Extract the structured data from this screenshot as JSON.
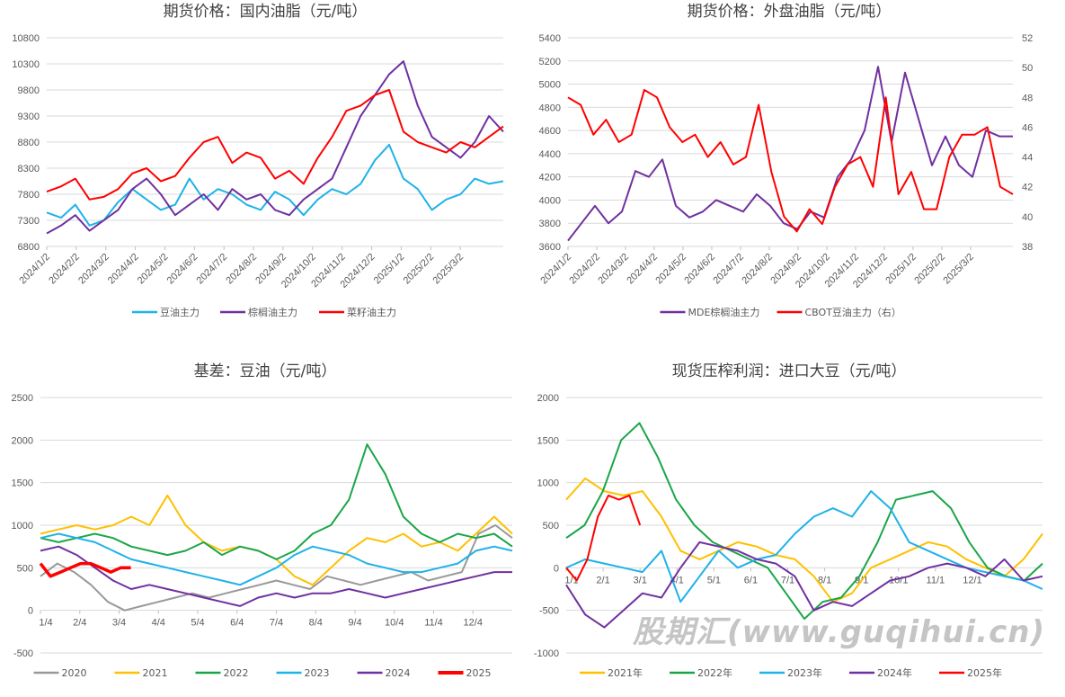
{
  "watermark": "股期汇(www.guqihui.cn)",
  "chart_data": [
    {
      "type": "line",
      "title": "期货价格：国内油脂（元/吨）",
      "ylim": [
        6800,
        10800
      ],
      "yticks": [
        6800,
        7300,
        7800,
        8300,
        8800,
        9300,
        9800,
        10300,
        10800
      ],
      "xlim": [
        0,
        14.6
      ],
      "xticks": [
        "2024/1/2",
        "2024/2/2",
        "2024/3/2",
        "2024/4/2",
        "2024/5/2",
        "2024/6/2",
        "2024/7/2",
        "2024/8/2",
        "2024/9/2",
        "2024/10/2",
        "2024/11/2",
        "2024/12/2",
        "2025/1/2",
        "2025/2/2",
        "2025/3/2"
      ],
      "legend_position": "bottom",
      "series": [
        {
          "name": "豆油主力",
          "color": "#1fb2e8",
          "values": [
            7450,
            7350,
            7600,
            7200,
            7300,
            7650,
            7900,
            7700,
            7500,
            7600,
            8100,
            7700,
            7900,
            7800,
            7600,
            7500,
            7850,
            7700,
            7400,
            7700,
            7900,
            7800,
            8000,
            8450,
            8750,
            8100,
            7900,
            7500,
            7700,
            7800,
            8100,
            8000,
            8050
          ]
        },
        {
          "name": "棕榈油主力",
          "color": "#7030a0",
          "values": [
            7050,
            7200,
            7400,
            7100,
            7300,
            7500,
            7900,
            8100,
            7800,
            7400,
            7600,
            7800,
            7500,
            7900,
            7700,
            7800,
            7500,
            7400,
            7700,
            7900,
            8100,
            8700,
            9300,
            9700,
            10100,
            10350,
            9500,
            8900,
            8700,
            8500,
            8800,
            9300,
            9000
          ]
        },
        {
          "name": "菜籽油主力",
          "color": "#ff0000",
          "values": [
            7850,
            7950,
            8100,
            7700,
            7750,
            7900,
            8200,
            8300,
            8050,
            8150,
            8500,
            8800,
            8900,
            8400,
            8600,
            8500,
            8100,
            8250,
            8000,
            8500,
            8900,
            9400,
            9500,
            9700,
            9800,
            9000,
            8800,
            8700,
            8600,
            8800,
            8700,
            8900,
            9100
          ]
        }
      ]
    },
    {
      "type": "line",
      "title": "期货价格：外盘油脂（元/吨）",
      "ylim": [
        3600,
        5400
      ],
      "yticks": [
        3600,
        3800,
        4000,
        4200,
        4400,
        4600,
        4800,
        5000,
        5200,
        5400
      ],
      "y2lim": [
        38,
        52
      ],
      "y2ticks": [
        38,
        40,
        42,
        44,
        46,
        48,
        50,
        52
      ],
      "xlim": [
        0,
        14.6
      ],
      "xticks": [
        "2024/1/2",
        "2024/2/2",
        "2024/3/2",
        "2024/4/2",
        "2024/5/2",
        "2024/6/2",
        "2024/7/2",
        "2024/8/2",
        "2024/9/2",
        "2024/10/2",
        "2024/11/2",
        "2024/12/2",
        "2025/1/2",
        "2025/2/2",
        "2025/3/2"
      ],
      "legend_position": "bottom",
      "series": [
        {
          "name": "MDE棕榈油主力",
          "color": "#7030a0",
          "axis": "left",
          "values": [
            3650,
            3800,
            3950,
            3800,
            3900,
            4250,
            4200,
            4350,
            3950,
            3850,
            3900,
            4000,
            3950,
            3900,
            4050,
            3950,
            3800,
            3750,
            3900,
            3850,
            4200,
            4350,
            4600,
            5150,
            4500,
            5100,
            4700,
            4300,
            4550,
            4300,
            4200,
            4600,
            4550,
            4550
          ]
        },
        {
          "name": "CBOT豆油主力（右）",
          "color": "#ff0000",
          "axis": "right",
          "values": [
            48,
            47.5,
            45.5,
            46.5,
            45,
            45.5,
            48.5,
            48,
            46,
            45,
            45.5,
            44,
            45,
            43.5,
            44,
            47.5,
            43,
            40,
            39,
            40.5,
            39.5,
            42,
            43.5,
            44,
            42,
            48,
            41.5,
            43,
            40.5,
            40.5,
            44,
            45.5,
            45.5,
            46,
            42,
            41.5
          ]
        }
      ]
    },
    {
      "type": "line",
      "title": "基差：豆油（元/吨）",
      "ylim": [
        -500,
        2500
      ],
      "yticks": [
        -500,
        0,
        500,
        1000,
        1500,
        2000,
        2500
      ],
      "xlim": [
        0,
        12
      ],
      "xticks": [
        "1/4",
        "2/4",
        "3/4",
        "4/4",
        "5/4",
        "6/4",
        "7/4",
        "8/4",
        "9/4",
        "10/4",
        "11/4",
        "12/4"
      ],
      "legend_position": "bottom",
      "series": [
        {
          "name": "2020",
          "color": "#999999",
          "values": [
            400,
            550,
            450,
            300,
            100,
            0,
            50,
            100,
            150,
            200,
            150,
            200,
            250,
            300,
            350,
            300,
            250,
            400,
            350,
            300,
            350,
            400,
            450,
            350,
            400,
            450,
            900,
            1000,
            850
          ]
        },
        {
          "name": "2021",
          "color": "#ffc000",
          "values": [
            900,
            950,
            1000,
            950,
            1000,
            1100,
            1000,
            1350,
            1000,
            800,
            700,
            750,
            700,
            600,
            400,
            300,
            500,
            700,
            850,
            800,
            900,
            750,
            800,
            700,
            900,
            1100,
            900
          ]
        },
        {
          "name": "2022",
          "color": "#1aa648",
          "values": [
            850,
            800,
            850,
            900,
            850,
            750,
            700,
            650,
            700,
            800,
            650,
            750,
            700,
            600,
            700,
            900,
            1000,
            1300,
            1950,
            1600,
            1100,
            900,
            800,
            900,
            850,
            900,
            750
          ]
        },
        {
          "name": "2023",
          "color": "#1fb2e8",
          "values": [
            850,
            900,
            850,
            800,
            700,
            600,
            550,
            500,
            450,
            400,
            350,
            300,
            400,
            500,
            650,
            750,
            700,
            650,
            550,
            500,
            450,
            450,
            500,
            550,
            700,
            750,
            700
          ]
        },
        {
          "name": "2024",
          "color": "#7030a0",
          "values": [
            700,
            750,
            650,
            500,
            350,
            250,
            300,
            250,
            200,
            150,
            100,
            50,
            150,
            200,
            150,
            200,
            200,
            250,
            200,
            150,
            200,
            250,
            300,
            350,
            400,
            450,
            450
          ]
        },
        {
          "name": "2025",
          "color": "#ff0000",
          "bold": true,
          "xend": 2.3,
          "values": [
            550,
            400,
            450,
            500,
            550,
            550,
            500,
            450,
            500,
            500
          ]
        }
      ]
    },
    {
      "type": "line",
      "title": "现货压榨利润：进口大豆（元/吨）",
      "ylim": [
        -1000,
        2000
      ],
      "yticks": [
        -1000,
        -500,
        0,
        500,
        1000,
        1500,
        2000
      ],
      "xlim": [
        0,
        12.9
      ],
      "xticks": [
        "1/1",
        "2/1",
        "3/1",
        "4/1",
        "5/1",
        "6/1",
        "7/1",
        "8/1",
        "9/1",
        "10/1",
        "11/1",
        "12/1"
      ],
      "legend_position": "bottom",
      "series": [
        {
          "name": "2021年",
          "color": "#ffc000",
          "values": [
            800,
            1050,
            900,
            850,
            900,
            600,
            200,
            100,
            200,
            300,
            250,
            150,
            100,
            -100,
            -400,
            -300,
            0,
            100,
            200,
            300,
            250,
            100,
            0,
            -100,
            100,
            400
          ]
        },
        {
          "name": "2022年",
          "color": "#1aa648",
          "values": [
            350,
            500,
            900,
            1500,
            1700,
            1300,
            800,
            500,
            300,
            200,
            100,
            0,
            -300,
            -600,
            -400,
            -350,
            -100,
            300,
            800,
            850,
            900,
            700,
            300,
            0,
            -100,
            -150,
            50
          ]
        },
        {
          "name": "2023年",
          "color": "#1fb2e8",
          "values": [
            0,
            100,
            50,
            0,
            -50,
            200,
            -400,
            -100,
            200,
            0,
            100,
            150,
            400,
            600,
            700,
            600,
            900,
            700,
            300,
            200,
            100,
            0,
            -50,
            -100,
            -150,
            -250
          ]
        },
        {
          "name": "2024年",
          "color": "#7030a0",
          "values": [
            -200,
            -550,
            -700,
            -500,
            -300,
            -350,
            0,
            300,
            250,
            200,
            100,
            50,
            -100,
            -500,
            -400,
            -450,
            -300,
            -150,
            -100,
            0,
            50,
            0,
            -100,
            100,
            -150,
            -100
          ]
        },
        {
          "name": "2025年",
          "color": "#ff0000",
          "xend": 2.0,
          "values": [
            0,
            -150,
            100,
            600,
            850,
            800,
            850,
            500
          ]
        }
      ]
    }
  ]
}
